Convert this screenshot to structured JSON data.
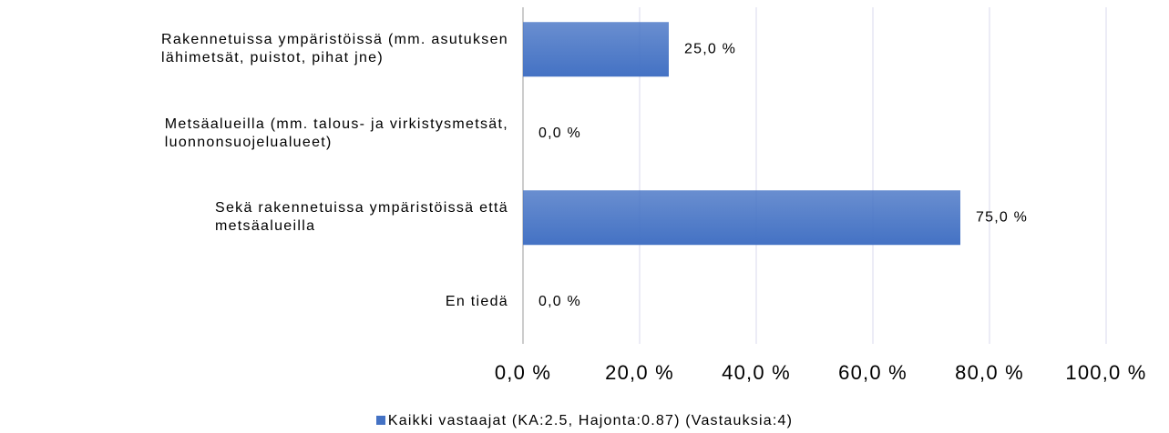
{
  "chart_data": {
    "type": "hbar",
    "categories": [
      "Rakennetuissa ympäristöissä (mm. asutuksen\nlähimetsät, puistot, pihat jne)",
      "Metsäalueilla (mm. talous- ja virkistysmetsät,\nluonnonsuojelualueet)",
      "Sekä rakennetuissa ympäristöissä että\nmetsäalueilla",
      "En tiedä"
    ],
    "series": [
      {
        "name": "Kaikki vastaajat (KA:2.5, Hajonta:0.87) (Vastauksia:4)",
        "color": "#4472c4",
        "values": [
          25,
          0,
          75,
          0
        ],
        "value_labels": [
          "25,0 %",
          "0,0 %",
          "75,0 %",
          "0,0 %"
        ]
      }
    ],
    "xlim": [
      0,
      100
    ],
    "xticks": [
      {
        "value": 0,
        "label": "0,0 %"
      },
      {
        "value": 20,
        "label": "20,0 %"
      },
      {
        "value": 40,
        "label": "40,0 %"
      },
      {
        "value": 60,
        "label": "60,0 %"
      },
      {
        "value": 80,
        "label": "80,0 %"
      },
      {
        "value": 100,
        "label": "100,0 %"
      }
    ],
    "grid": true,
    "legend": "bottom"
  }
}
